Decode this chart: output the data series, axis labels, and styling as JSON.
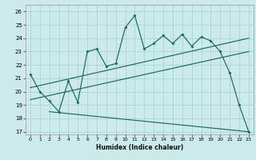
{
  "title": "",
  "xlabel": "Humidex (Indice chaleur)",
  "ylabel": "",
  "bg_color": "#cceae9",
  "line_color": "#1a6b5a",
  "grid_color": "#aad4d4",
  "xlim": [
    -0.5,
    23.5
  ],
  "ylim": [
    16.8,
    26.5
  ],
  "xticks": [
    0,
    1,
    2,
    3,
    4,
    5,
    6,
    7,
    8,
    9,
    10,
    11,
    12,
    13,
    14,
    15,
    16,
    17,
    18,
    19,
    20,
    21,
    22,
    23
  ],
  "yticks": [
    17,
    18,
    19,
    20,
    21,
    22,
    23,
    24,
    25,
    26
  ],
  "main_x": [
    0,
    1,
    2,
    3,
    4,
    5,
    6,
    7,
    8,
    9,
    10,
    11,
    12,
    13,
    14,
    15,
    16,
    17,
    18,
    19,
    20,
    21,
    22,
    23
  ],
  "main_y": [
    21.3,
    20.0,
    19.3,
    18.5,
    20.8,
    19.2,
    23.0,
    23.2,
    21.9,
    22.1,
    24.8,
    25.7,
    23.2,
    23.6,
    24.2,
    23.6,
    24.3,
    23.4,
    24.1,
    23.8,
    23.0,
    21.4,
    19.0,
    17.0
  ],
  "line2_x": [
    0,
    23
  ],
  "line2_y": [
    20.3,
    24.0
  ],
  "line3_x": [
    0,
    23
  ],
  "line3_y": [
    19.4,
    23.0
  ],
  "line4_x": [
    2,
    23
  ],
  "line4_y": [
    18.5,
    17.0
  ]
}
